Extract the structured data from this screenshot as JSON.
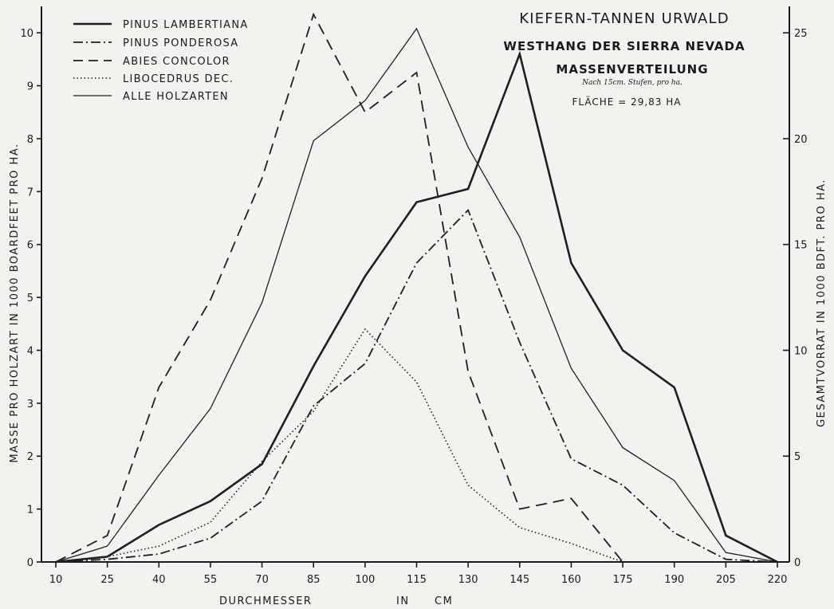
{
  "chart_data": {
    "type": "line",
    "title": "KIEFERN-TANNEN URWALD",
    "subtitle": "WESTHANG DER SIERRA NEVADA",
    "subtitle2": "MASSENVERTEILUNG",
    "note": "Nach 15cm. Stufen, pro ha.",
    "area": "FLÄCHE = 29,83 HA",
    "xlabel_parts": [
      "DURCHMESSER",
      "IN",
      "CM"
    ],
    "ylabel": "MASSE PRO HOLZART IN 1000 BOARDFEET PRO HA.",
    "y2label": "GESAMTVORRAT IN 1000 BDFT. PRO HA.",
    "x": [
      10,
      25,
      40,
      55,
      70,
      85,
      100,
      115,
      130,
      145,
      160,
      175,
      190,
      205,
      220
    ],
    "xlim": [
      10,
      220
    ],
    "ylim": [
      0,
      10.5
    ],
    "y2lim": [
      0,
      26.25
    ],
    "yticks": [
      0,
      1,
      2,
      3,
      4,
      5,
      6,
      7,
      8,
      9,
      10
    ],
    "y2ticks": [
      0,
      5,
      10,
      15,
      20,
      25
    ],
    "grid": false,
    "legend_position": "top-left",
    "series": [
      {
        "name": "PINUS LAMBERTIANA",
        "style": "solid-thick",
        "axis": "left",
        "values": [
          0,
          0.1,
          0.7,
          1.15,
          1.85,
          3.7,
          5.4,
          6.8,
          7.05,
          9.6,
          5.65,
          4.0,
          3.3,
          0.5,
          0
        ]
      },
      {
        "name": "PINUS PONDEROSA",
        "style": "dashdot",
        "axis": "left",
        "values": [
          0,
          0.05,
          0.15,
          0.45,
          1.15,
          2.95,
          3.75,
          5.65,
          6.65,
          4.15,
          1.95,
          1.45,
          0.55,
          0.05,
          0
        ]
      },
      {
        "name": "ABIES CONCOLOR",
        "style": "dashed",
        "axis": "left",
        "values": [
          0,
          0.5,
          3.3,
          4.95,
          7.25,
          10.35,
          8.5,
          9.25,
          3.6,
          1.0,
          1.2,
          0,
          null,
          null,
          null
        ]
      },
      {
        "name": "LIBOCEDRUS DEC.",
        "style": "dotted",
        "axis": "left",
        "values": [
          0,
          0.1,
          0.3,
          0.75,
          1.9,
          2.85,
          4.4,
          3.4,
          1.45,
          0.65,
          0.35,
          0,
          null,
          null,
          null
        ]
      },
      {
        "name": "ALLE HOLZARTEN",
        "style": "solid-thin",
        "axis": "right",
        "values": [
          0,
          0.75,
          4.1,
          7.25,
          12.25,
          19.9,
          21.8,
          25.2,
          19.6,
          15.35,
          9.15,
          5.4,
          3.85,
          0.45,
          0
        ]
      }
    ]
  }
}
